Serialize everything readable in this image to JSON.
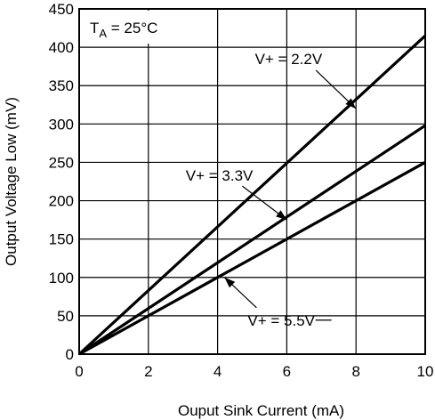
{
  "chart_data": {
    "type": "line",
    "xlabel": "Ouput Sink Current (mA)",
    "ylabel": "Output Voltage Low (mV)",
    "xlim": [
      0,
      10
    ],
    "ylim": [
      0,
      450
    ],
    "xticks": [
      0,
      2,
      4,
      6,
      8,
      10
    ],
    "yticks": [
      0,
      50,
      100,
      150,
      200,
      250,
      300,
      350,
      400,
      450
    ],
    "grid": true,
    "condition": {
      "prefix": "T",
      "sub": "A",
      "suffix": " = 25°C"
    },
    "series": [
      {
        "name": "V+ = 2.2V",
        "x": [
          0,
          10
        ],
        "y": [
          0,
          415
        ],
        "label_point": [
          8.0,
          320
        ]
      },
      {
        "name": "V+ = 3.3V",
        "x": [
          0,
          10
        ],
        "y": [
          0,
          298
        ],
        "label_point": [
          6.0,
          175
        ]
      },
      {
        "name": "V+ = 5.5V",
        "x": [
          0,
          10
        ],
        "y": [
          0,
          250
        ],
        "label_point": [
          4.2,
          100
        ]
      }
    ]
  }
}
